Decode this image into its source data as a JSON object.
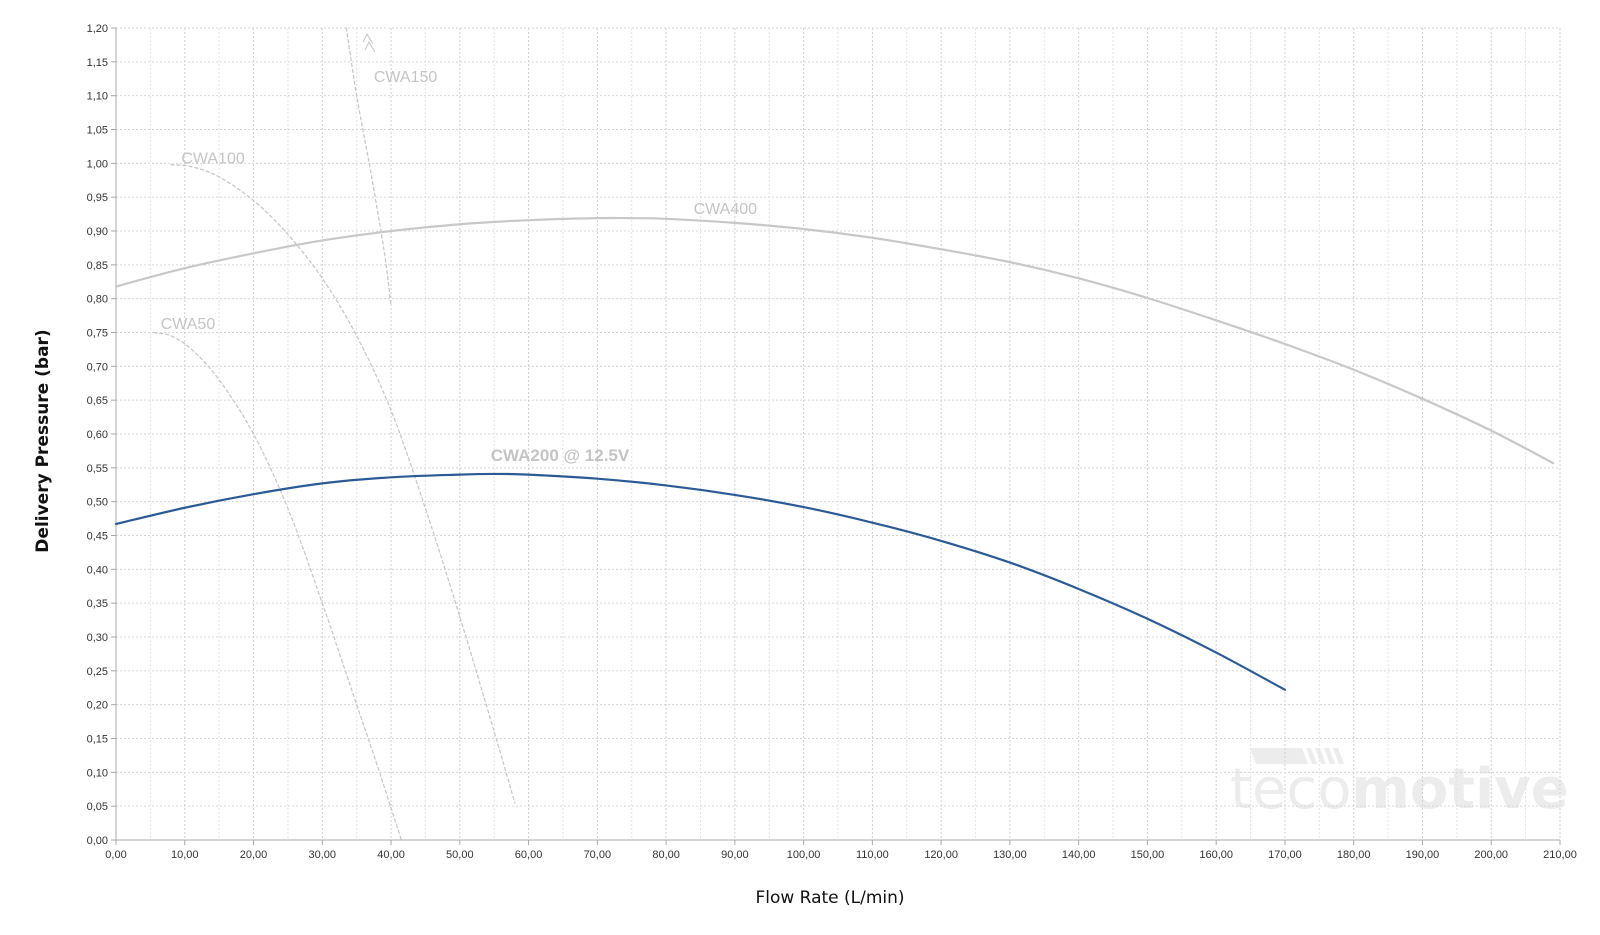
{
  "chart_data": {
    "type": "line",
    "xlabel": "Flow Rate (L/min)",
    "ylabel": "Delivery Pressure (bar)",
    "xlim": [
      0,
      210
    ],
    "ylim": [
      0,
      1.2
    ],
    "x_ticks": [
      0,
      10,
      20,
      30,
      40,
      50,
      60,
      70,
      80,
      90,
      100,
      110,
      120,
      130,
      140,
      150,
      160,
      170,
      180,
      190,
      200,
      210
    ],
    "y_ticks": [
      0,
      0.05,
      0.1,
      0.15,
      0.2,
      0.25,
      0.3,
      0.35,
      0.4,
      0.45,
      0.5,
      0.55,
      0.6,
      0.65,
      0.7,
      0.75,
      0.8,
      0.85,
      0.9,
      0.95,
      1.0,
      1.05,
      1.1,
      1.15,
      1.2
    ],
    "x_tick_labels": [
      "0,00",
      "10,00",
      "20,00",
      "30,00",
      "40,00",
      "50,00",
      "60,00",
      "70,00",
      "80,00",
      "90,00",
      "100,00",
      "110,00",
      "120,00",
      "130,00",
      "140,00",
      "150,00",
      "160,00",
      "170,00",
      "180,00",
      "190,00",
      "200,00",
      "210,00"
    ],
    "y_tick_labels": [
      "0,00",
      "0,05",
      "0,10",
      "0,15",
      "0,20",
      "0,25",
      "0,30",
      "0,35",
      "0,40",
      "0,45",
      "0,50",
      "0,55",
      "0,60",
      "0,65",
      "0,70",
      "0,75",
      "0,80",
      "0,85",
      "0,90",
      "0,95",
      "1,00",
      "1,05",
      "1,10",
      "1,15",
      "1,20"
    ],
    "grid": true,
    "series": [
      {
        "name": "CWA200 @ 12.5V",
        "color": "#2b5b94",
        "style": "solid",
        "x": [
          0,
          10,
          20,
          30,
          40,
          50,
          55,
          60,
          70,
          80,
          90,
          100,
          110,
          120,
          130,
          140,
          150,
          160,
          170
        ],
        "y": [
          0.467,
          0.491,
          0.511,
          0.527,
          0.536,
          0.54,
          0.541,
          0.54,
          0.534,
          0.524,
          0.51,
          0.492,
          0.469,
          0.442,
          0.41,
          0.371,
          0.327,
          0.277,
          0.222
        ]
      },
      {
        "name": "CWA400",
        "color": "#c8c8c8",
        "style": "solid",
        "x": [
          0,
          10,
          20,
          30,
          40,
          50,
          60,
          70,
          75,
          80,
          90,
          100,
          110,
          120,
          130,
          140,
          150,
          160,
          170,
          180,
          190,
          200,
          209
        ],
        "y": [
          0.818,
          0.845,
          0.867,
          0.886,
          0.9,
          0.91,
          0.916,
          0.919,
          0.919,
          0.918,
          0.912,
          0.903,
          0.89,
          0.873,
          0.854,
          0.83,
          0.801,
          0.768,
          0.733,
          0.695,
          0.652,
          0.605,
          0.557
        ]
      },
      {
        "name": "CWA50",
        "color": "#c8c8c8",
        "style": "dashed",
        "x": [
          5.5,
          8,
          11,
          15,
          20,
          25,
          30,
          35,
          38,
          41.5
        ],
        "y": [
          0.75,
          0.745,
          0.725,
          0.68,
          0.6,
          0.49,
          0.35,
          0.2,
          0.11,
          0.0
        ]
      },
      {
        "name": "CWA100",
        "color": "#c8c8c8",
        "style": "dashed",
        "x": [
          8,
          11,
          15,
          20,
          25,
          30,
          35,
          40,
          45,
          50,
          55,
          58
        ],
        "y": [
          0.998,
          0.995,
          0.98,
          0.945,
          0.895,
          0.83,
          0.745,
          0.635,
          0.49,
          0.33,
          0.16,
          0.055
        ]
      },
      {
        "name": "CWA150",
        "color": "#c8c8c8",
        "style": "dashed",
        "x": [
          33.5,
          35,
          37,
          39,
          40
        ],
        "y": [
          1.2,
          1.1,
          0.99,
          0.87,
          0.79
        ]
      }
    ],
    "annotations": [
      "CWA200 @ 12.5V",
      "CWA400",
      "CWA100",
      "CWA50",
      "CWA150"
    ]
  },
  "watermark": {
    "text_light": "teco",
    "text_bold": "motive",
    "color": "#ececec"
  }
}
